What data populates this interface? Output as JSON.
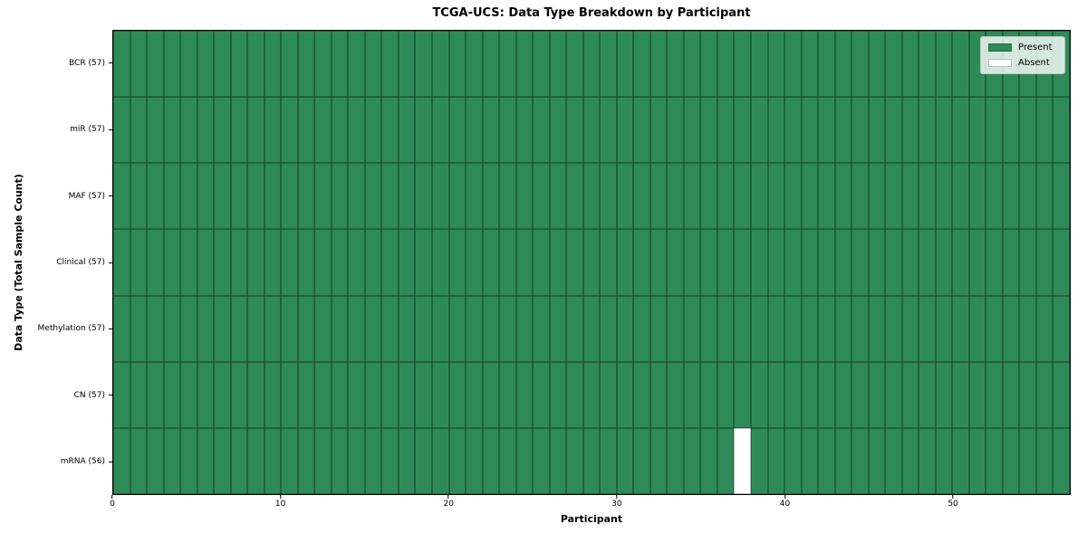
{
  "chart_data": {
    "type": "heatmap",
    "title": "TCGA-UCS: Data Type Breakdown by Participant",
    "xlabel": "Participant",
    "ylabel": "Data Type (Total Sample Count)",
    "n_participants": 57,
    "x_ticks": [
      0,
      10,
      20,
      30,
      40,
      50
    ],
    "y_categories": [
      "BCR (57)",
      "miR (57)",
      "MAF (57)",
      "Clinical (57)",
      "Methylation (57)",
      "CN (57)",
      "mRNA (56)"
    ],
    "rows": [
      {
        "data_type": "BCR",
        "label": "BCR (57)",
        "total_samples": 57,
        "absent_participants": []
      },
      {
        "data_type": "miR",
        "label": "miR (57)",
        "total_samples": 57,
        "absent_participants": []
      },
      {
        "data_type": "MAF",
        "label": "MAF (57)",
        "total_samples": 57,
        "absent_participants": []
      },
      {
        "data_type": "Clinical",
        "label": "Clinical (57)",
        "total_samples": 57,
        "absent_participants": []
      },
      {
        "data_type": "Methylation",
        "label": "Methylation (57)",
        "total_samples": 57,
        "absent_participants": []
      },
      {
        "data_type": "CN",
        "label": "CN (57)",
        "total_samples": 57,
        "absent_participants": []
      },
      {
        "data_type": "mRNA",
        "label": "mRNA (56)",
        "total_samples": 56,
        "absent_participants": [
          37
        ]
      }
    ],
    "legend_items": [
      {
        "label": "Present",
        "color": "#2e8b57"
      },
      {
        "label": "Absent",
        "color": "#ffffff"
      }
    ],
    "legend_position": "upper right",
    "colors": {
      "present": "#2e8b57",
      "absent": "#ffffff",
      "grid_line": "rgba(0,0,0,0.55)",
      "axis": "#000000",
      "background": "#ffffff"
    }
  }
}
